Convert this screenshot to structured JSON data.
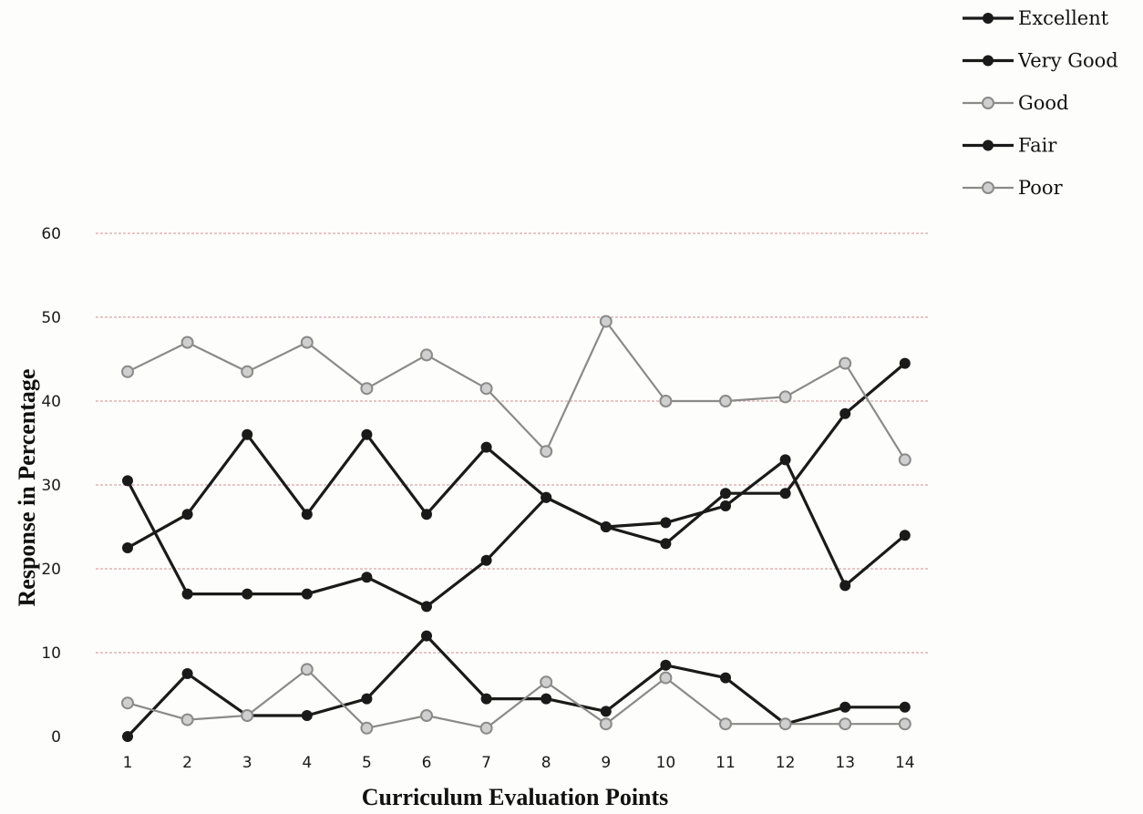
{
  "chart_data": {
    "type": "line",
    "title": "",
    "xlabel": "Curriculum Evaluation Points",
    "ylabel": "Response in Percentage",
    "x": [
      1,
      2,
      3,
      4,
      5,
      6,
      7,
      8,
      9,
      10,
      11,
      12,
      13,
      14
    ],
    "ylim": [
      0,
      60
    ],
    "yticks": [
      0,
      10,
      20,
      30,
      40,
      50,
      60
    ],
    "grid": true,
    "legend_position": "top-right",
    "series": [
      {
        "name": "Excellent",
        "color": "#1a1a1a",
        "marker": "filled",
        "values": [
          22.5,
          26.5,
          36,
          26.5,
          36,
          26.5,
          34.5,
          28.5,
          25,
          25.5,
          27.5,
          33,
          18,
          24
        ]
      },
      {
        "name": "Very Good",
        "color": "#1a1a1a",
        "marker": "filled",
        "values": [
          30.5,
          17,
          17,
          17,
          19,
          15.5,
          21,
          28.5,
          25,
          23,
          29,
          29,
          38.5,
          44.5
        ]
      },
      {
        "name": "Good",
        "color": "#8a8a8a",
        "marker": "hollow",
        "values": [
          43.5,
          47,
          43.5,
          47,
          41.5,
          45.5,
          41.5,
          34,
          49.5,
          40,
          40,
          40.5,
          44.5,
          33
        ]
      },
      {
        "name": "Fair",
        "color": "#1a1a1a",
        "marker": "filled",
        "values": [
          0,
          7.5,
          2.5,
          2.5,
          4.5,
          12,
          4.5,
          4.5,
          3,
          8.5,
          7,
          1.5,
          3.5,
          3.5
        ]
      },
      {
        "name": "Poor",
        "color": "#8a8a8a",
        "marker": "hollow",
        "values": [
          4,
          2,
          2.5,
          8,
          1,
          2.5,
          1,
          6.5,
          1.5,
          7,
          1.5,
          1.5,
          1.5,
          1.5
        ]
      }
    ]
  }
}
